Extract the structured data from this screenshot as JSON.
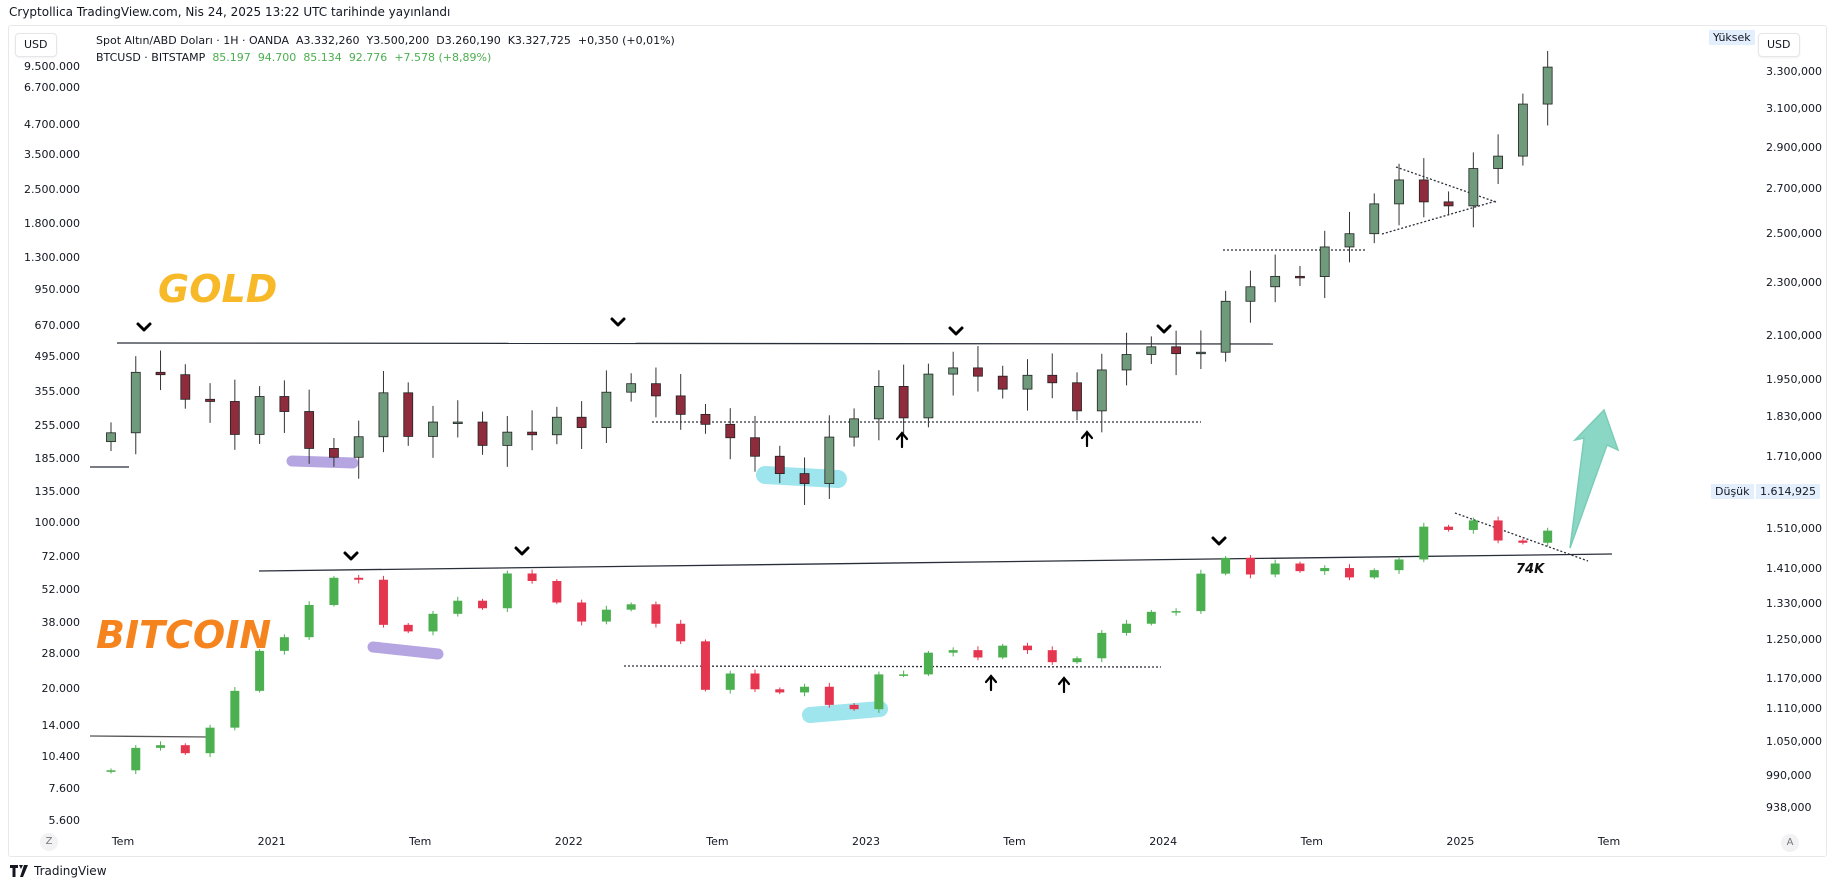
{
  "title": "Cryptollica TradingView.com, Nis 24, 2025 13:22 UTC tarihinde yayınlandı",
  "left_currency": "USD",
  "right_currency": "USD",
  "legend": {
    "gold": {
      "name": "Spot Altın/ABD Doları · 1H · OANDA",
      "open": "A3.332,260",
      "high": "Y3.500,200",
      "low": "D3.260,190",
      "close": "K3.327,725",
      "change": "+0,350 (+0,01%)"
    },
    "btc": {
      "name": "BTCUSD · BITSTAMP",
      "open": "85.197",
      "high": "94.700",
      "low": "85.134",
      "close": "92.776",
      "change": "+7.578 (+8,89%)"
    }
  },
  "tags": {
    "high_label": "Yüksek",
    "low_label": "Düşük",
    "low_value": "1.614,925"
  },
  "axis_buttons": {
    "left": "Z",
    "right": "A"
  },
  "brand": "TradingView",
  "chart_data": {
    "type": "candlestick",
    "scale": "log",
    "grid": false,
    "x_ticks": [
      "Tem",
      "2021",
      "Tem",
      "2022",
      "Tem",
      "2023",
      "Tem",
      "2024",
      "Tem",
      "2025",
      "Tem"
    ],
    "left_axis_ticks": [
      "9.500.000",
      "6.700.000",
      "4.700.000",
      "3.500.000",
      "2.500.000",
      "1.800.000",
      "1.300.000",
      "950.000",
      "670.000",
      "495.000",
      "355.000",
      "255.000",
      "185.000",
      "135.000",
      "100.000",
      "72.000",
      "52.000",
      "38.000",
      "28.000",
      "20.000",
      "14.000",
      "10.400",
      "7.600",
      "5.600"
    ],
    "right_axis_ticks": [
      "3.300,000",
      "3.100,000",
      "2.900,000",
      "2.700,000",
      "2.500,000",
      "2.300,000",
      "2.100,000",
      "1.950,000",
      "1.830,000",
      "1.710,000",
      "1.510,000",
      "1.410,000",
      "1.330,000",
      "1.250,000",
      "1.170,000",
      "1.110,000",
      "1.050,000",
      "990,000",
      "938,000"
    ],
    "start_month": "2020-06",
    "colors": {
      "gold_up": "#6f9a7c",
      "gold_down": "#8e2b3c",
      "btc_up": "#4caf50",
      "btc_down": "#e5364f"
    },
    "series": [
      {
        "name": "Spot Altın/ABD Doları",
        "axis": "right",
        "closes": [
          1781,
          1975,
          1967,
          1886,
          1879,
          1776,
          1895,
          1847,
          1734,
          1708,
          1769,
          1907,
          1770,
          1814,
          1814,
          1743,
          1783,
          1775,
          1829,
          1797,
          1909,
          1937,
          1897,
          1838,
          1807,
          1766,
          1711,
          1661,
          1633,
          1768,
          1824,
          1928,
          1827,
          1969,
          1990,
          1962,
          1919,
          1965,
          1940,
          1849,
          1983,
          2036,
          2063,
          2039,
          2044,
          2230,
          2286,
          2327,
          2326,
          2447,
          2503,
          2634,
          2744,
          2643,
          2625,
          2798,
          2858,
          3124,
          3327.725
        ]
      },
      {
        "name": "BTCUSD",
        "axis": "left",
        "closes": [
          9137,
          11350,
          11650,
          10780,
          13800,
          19700,
          29000,
          33100,
          45200,
          58800,
          57700,
          37300,
          35000,
          41500,
          47100,
          43800,
          61300,
          57000,
          46300,
          38500,
          43200,
          45500,
          37700,
          31800,
          19900,
          23300,
          20000,
          19400,
          20500,
          17200,
          16500,
          23100,
          23100,
          28500,
          29200,
          27200,
          30500,
          29200,
          26000,
          27000,
          34500,
          37700,
          42300,
          42600,
          61200,
          71300,
          60700,
          67500,
          62700,
          64600,
          59000,
          63300,
          70200,
          96400,
          93400,
          102400,
          84300,
          82500,
          92776
        ]
      }
    ],
    "annotations": {
      "gold_label": "GOLD",
      "gold_label_color": "#f7b928",
      "btc_label": "BITCOIN",
      "btc_label_color": "#f5841f",
      "btc_support_label": "74K",
      "highlight_colors": {
        "purple": "#a996dc",
        "cyan": "#8fe1ec"
      },
      "arrow_color": "#7fd3bf"
    }
  }
}
